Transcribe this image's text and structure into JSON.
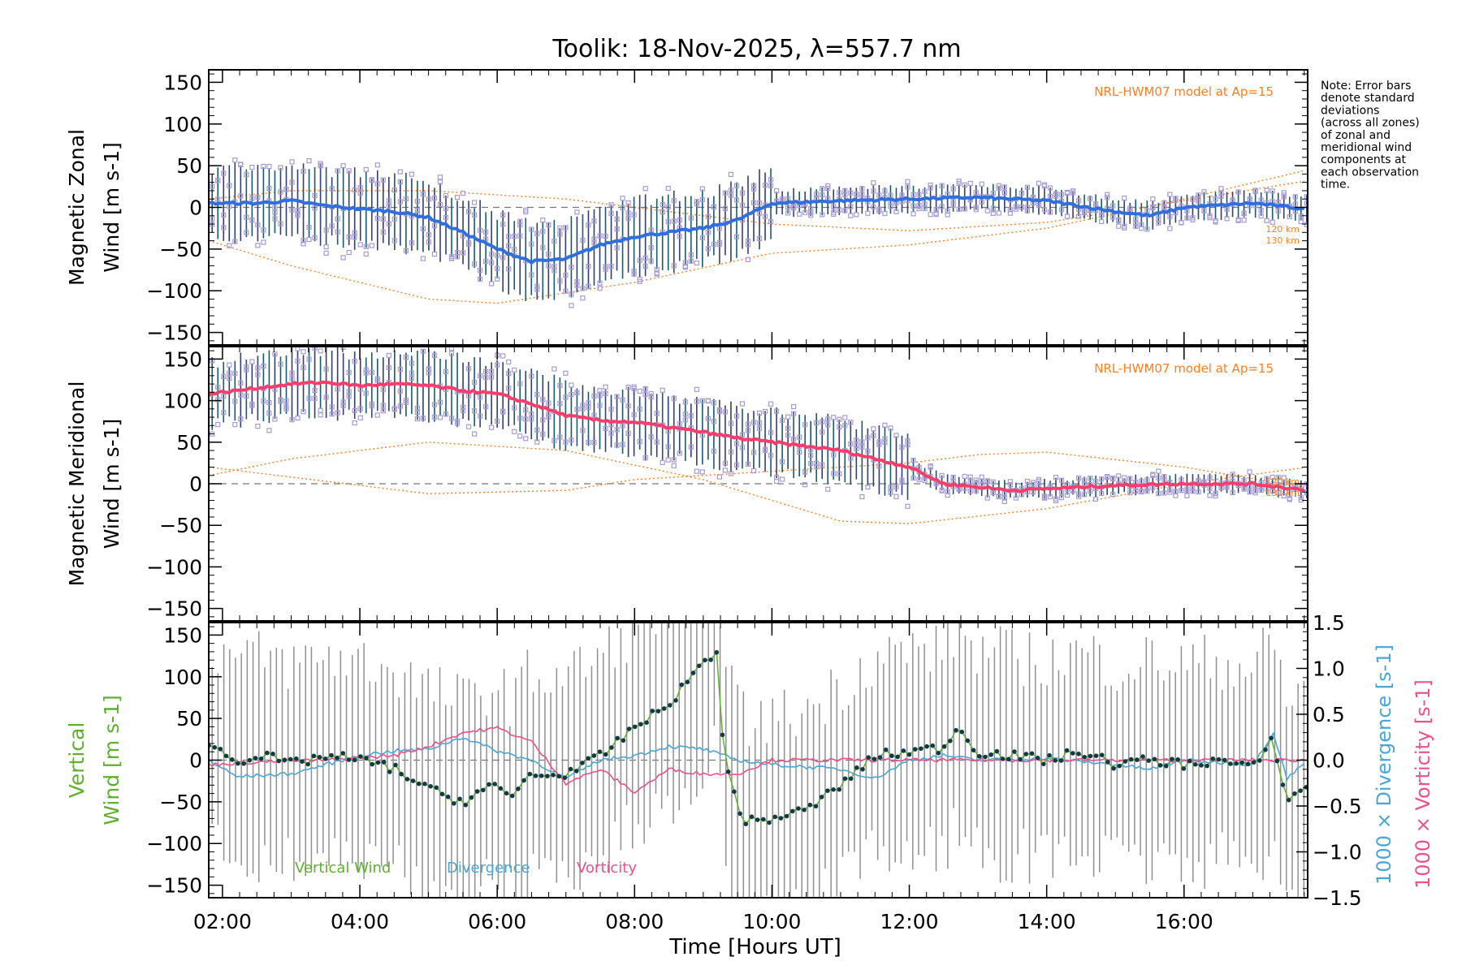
{
  "title": "Toolik: 18-Nov-2025, λ=557.7 nm",
  "note_lines": [
    "Note: Error bars",
    "denote standard",
    "deviations",
    "(across all zones)",
    "of zonal and",
    "meridional wind",
    "components at",
    "each observation",
    "time."
  ],
  "model_label": "NRL-HWM07 model at Ap=15",
  "alt_labels": [
    "120 km",
    "130 km"
  ],
  "xlabel": "Time [Hours UT]",
  "colors": {
    "zonal": "#2f6fe0",
    "meridional": "#ff3c6e",
    "vertical": "#5fb030",
    "divergence": "#4aa6d8",
    "vorticity": "#f0508a",
    "model": "#ff8020",
    "samples": "#a89ad6",
    "errbar": "#404040",
    "grey_err": "#909090"
  },
  "legend": {
    "vertical": "Vertical Wind",
    "divergence": "Divergence",
    "vorticity": "Vorticity"
  },
  "chart_data": [
    {
      "type": "line",
      "panel": "zonal",
      "ylabel": [
        "Magnetic Zonal",
        "Wind [m s-1]"
      ],
      "ylim": [
        -165,
        165
      ],
      "yticks": [
        "150",
        "100",
        "50",
        "0",
        "−50",
        "−100",
        "−150"
      ],
      "ytick_values": [
        150,
        100,
        50,
        0,
        -50,
        -100,
        -150
      ],
      "xlim": [
        1.8,
        17.8
      ],
      "xticks": [
        "02:00",
        "04:00",
        "06:00",
        "08:00",
        "10:00",
        "12:00",
        "14:00",
        "16:00"
      ],
      "xtick_values": [
        2,
        4,
        6,
        8,
        10,
        12,
        14,
        16
      ],
      "series": [
        {
          "name": "Zonal wind",
          "x": [
            1.8,
            2.5,
            3.0,
            3.5,
            4.0,
            4.5,
            5.0,
            5.5,
            6.0,
            6.5,
            7.0,
            7.5,
            8.0,
            8.5,
            9.0,
            9.5,
            10.0,
            11.0,
            12.0,
            13.0,
            14.0,
            15.0,
            15.5,
            16.0,
            17.0,
            17.8
          ],
          "y": [
            5,
            5,
            8,
            2,
            -2,
            -5,
            -12,
            -30,
            -50,
            -65,
            -62,
            -45,
            -35,
            -30,
            -25,
            -15,
            5,
            8,
            10,
            12,
            8,
            -5,
            -10,
            0,
            5,
            -2
          ]
        },
        {
          "name": "Model 120 km",
          "x": [
            1.8,
            3.0,
            5.0,
            7.0,
            9.0,
            10.0,
            12.0,
            14.0,
            16.0,
            17.8
          ],
          "y": [
            10,
            20,
            20,
            10,
            -10,
            -20,
            -28,
            -18,
            8,
            32
          ]
        },
        {
          "name": "Model 130 km",
          "x": [
            1.8,
            3.0,
            5.0,
            6.0,
            8.0,
            10.0,
            12.0,
            14.0,
            16.0,
            17.8
          ],
          "y": [
            -40,
            -70,
            -110,
            -115,
            -90,
            -55,
            -45,
            -25,
            10,
            45
          ]
        }
      ]
    },
    {
      "type": "line",
      "panel": "meridional",
      "ylabel": [
        "Magnetic Meridional",
        "Wind [m s-1]"
      ],
      "ylim": [
        -165,
        165
      ],
      "yticks": [
        "150",
        "100",
        "50",
        "0",
        "−50",
        "−100",
        "−150"
      ],
      "ytick_values": [
        150,
        100,
        50,
        0,
        -50,
        -100,
        -150
      ],
      "xlim": [
        1.8,
        17.8
      ],
      "series": [
        {
          "name": "Meridional wind",
          "x": [
            1.8,
            2.5,
            3.0,
            3.5,
            4.0,
            4.5,
            5.0,
            5.5,
            6.0,
            6.5,
            7.0,
            7.5,
            8.0,
            8.5,
            9.0,
            9.5,
            10.0,
            11.0,
            12.0,
            12.5,
            13.0,
            13.5,
            14.0,
            15.0,
            16.0,
            17.0,
            17.8
          ],
          "y": [
            108,
            115,
            120,
            122,
            118,
            120,
            118,
            112,
            108,
            96,
            82,
            76,
            74,
            68,
            62,
            55,
            50,
            40,
            20,
            0,
            -4,
            -8,
            -6,
            -2,
            0,
            0,
            -8
          ]
        },
        {
          "name": "Model 120 km",
          "x": [
            1.8,
            3.0,
            5.0,
            7.0,
            8.0,
            10.0,
            12.0,
            13.0,
            14.0,
            16.0,
            17.8
          ],
          "y": [
            20,
            8,
            -12,
            -8,
            5,
            15,
            25,
            35,
            38,
            20,
            -5
          ]
        },
        {
          "name": "Model 130 km",
          "x": [
            1.8,
            3.0,
            5.0,
            7.0,
            9.0,
            11.0,
            12.0,
            14.0,
            16.0,
            17.8
          ],
          "y": [
            10,
            30,
            50,
            40,
            5,
            -45,
            -48,
            -30,
            0,
            20
          ]
        }
      ]
    },
    {
      "type": "line",
      "panel": "vertical",
      "ylabel": [
        "Vertical",
        "Wind [m s-1]"
      ],
      "ylim": [
        -165,
        165
      ],
      "yticks": [
        "150",
        "100",
        "50",
        "0",
        "−50",
        "−100",
        "−150"
      ],
      "ytick_values": [
        150,
        100,
        50,
        0,
        -50,
        -100,
        -150
      ],
      "y2lim": [
        -1.5,
        1.5
      ],
      "y2ticks": [
        "1.5",
        "1.0",
        "0.5",
        "0.0",
        "−0.5",
        "−1.0",
        "−1.5"
      ],
      "y2tick_values": [
        1.5,
        1.0,
        0.5,
        0.0,
        -0.5,
        -1.0,
        -1.5
      ],
      "y2labels": [
        "1000 × Divergence [s-1]",
        "1000 × Vorticity [s-1]"
      ],
      "xlim": [
        1.8,
        17.8
      ],
      "series": [
        {
          "name": "Vertical Wind",
          "x": [
            1.8,
            2.2,
            2.6,
            3.0,
            3.5,
            4.0,
            4.5,
            5.0,
            5.5,
            5.9,
            6.2,
            6.5,
            6.8,
            7.2,
            7.6,
            8.0,
            8.4,
            8.8,
            9.0,
            9.2,
            9.3,
            9.6,
            10.0,
            10.5,
            11.0,
            11.5,
            12.0,
            12.5,
            12.7,
            13.0,
            13.5,
            14.0,
            14.5,
            15.0,
            15.5,
            16.0,
            16.5,
            17.0,
            17.3,
            17.5,
            17.8
          ],
          "y": [
            20,
            0,
            5,
            -5,
            5,
            0,
            -10,
            -35,
            -50,
            -30,
            -45,
            -15,
            -20,
            -10,
            10,
            40,
            60,
            95,
            120,
            130,
            0,
            -75,
            -70,
            -60,
            -30,
            5,
            10,
            15,
            40,
            10,
            5,
            0,
            10,
            -5,
            0,
            -5,
            0,
            -10,
            25,
            -50,
            -30
          ]
        },
        {
          "name": "Divergence",
          "x": [
            1.8,
            2.2,
            3.0,
            3.5,
            4.0,
            4.5,
            5.0,
            5.5,
            6.0,
            6.5,
            7.0,
            7.5,
            8.0,
            8.5,
            9.0,
            9.5,
            10.0,
            11.0,
            11.5,
            12.0,
            12.5,
            13.0,
            14.0,
            15.0,
            15.5,
            16.0,
            17.0,
            17.3,
            17.5,
            17.8
          ],
          "y": [
            0.0,
            -0.18,
            -0.15,
            -0.05,
            0.05,
            0.1,
            0.12,
            0.25,
            0.1,
            0.0,
            -0.2,
            0.0,
            0.05,
            0.15,
            0.12,
            0.0,
            -0.05,
            -0.1,
            -0.2,
            0.0,
            0.05,
            0.0,
            0.02,
            -0.05,
            -0.1,
            0.0,
            -0.05,
            0.3,
            -0.2,
            0.0
          ]
        },
        {
          "name": "Vorticity",
          "x": [
            1.8,
            2.5,
            3.5,
            4.5,
            5.0,
            5.5,
            6.0,
            6.5,
            7.0,
            7.5,
            8.0,
            8.5,
            9.0,
            9.5,
            10.0,
            11.0,
            12.0,
            13.0,
            14.0,
            15.0,
            16.0,
            17.0,
            17.8
          ],
          "y": [
            -0.05,
            -0.02,
            0.0,
            0.05,
            0.15,
            0.3,
            0.35,
            0.2,
            -0.25,
            -0.1,
            -0.35,
            -0.1,
            -0.15,
            -0.15,
            0.0,
            0.0,
            0.0,
            0.0,
            0.0,
            0.0,
            0.0,
            0.0,
            0.0
          ]
        }
      ]
    }
  ]
}
